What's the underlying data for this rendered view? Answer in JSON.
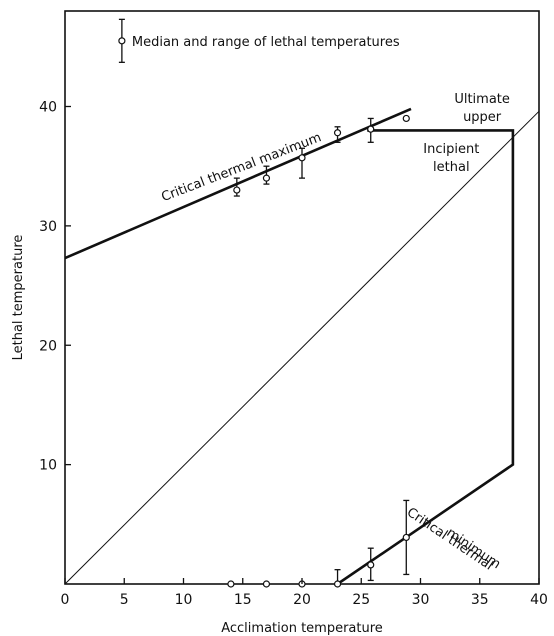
{
  "chart_data": {
    "type": "line",
    "xlabel": "Acclimation temperature",
    "ylabel": "Lethal temperature",
    "xlim": [
      0,
      40
    ],
    "ylim": [
      0,
      48
    ],
    "x_ticks": [
      0,
      5,
      10,
      15,
      20,
      25,
      30,
      35,
      40
    ],
    "y_ticks": [
      10,
      20,
      30,
      40
    ],
    "grid": false,
    "legend": {
      "position": "top-left",
      "label": "Median and range of lethal temperatures"
    },
    "series": [
      {
        "name": "Critical thermal maximum",
        "points": [
          [
            0,
            27.3
          ],
          [
            29.2,
            39.8
          ]
        ]
      },
      {
        "name": "",
        "points": [
          [
            0,
            0
          ],
          [
            40,
            39.6
          ]
        ]
      },
      {
        "name": "",
        "points": [
          [
            25.5,
            38
          ],
          [
            37.8,
            38
          ],
          [
            37.8,
            10
          ],
          [
            23,
            0
          ]
        ]
      }
    ],
    "observations": [
      {
        "x": 14.5,
        "y": 33,
        "low": 32.5,
        "high": 34
      },
      {
        "x": 17,
        "y": 34,
        "low": 33.5,
        "high": 35
      },
      {
        "x": 20,
        "y": 35.7,
        "low": 34,
        "high": 36.5
      },
      {
        "x": 23,
        "y": 37.8,
        "low": 37,
        "high": 38.3
      },
      {
        "x": 25.8,
        "y": 38.1,
        "low": 37,
        "high": 39
      },
      {
        "x": 28.8,
        "y": 39,
        "low": null,
        "high": null
      },
      {
        "x": 14,
        "y": 0,
        "low": null,
        "high": null
      },
      {
        "x": 17,
        "y": 0,
        "low": null,
        "high": null
      },
      {
        "x": 20,
        "y": 0,
        "low": null,
        "high": null
      },
      {
        "x": 23,
        "y": 0,
        "low": 0,
        "high": 1.2
      },
      {
        "x": 25.8,
        "y": 1.6,
        "low": 0.3,
        "high": 3
      },
      {
        "x": 28.8,
        "y": 3.9,
        "low": 0.8,
        "high": 7
      }
    ],
    "legend_marker": {
      "x": 4.8,
      "y": 45.5,
      "low": 43.7,
      "high": 47.3
    },
    "annotations": [
      {
        "text": "Critical thermal maximum",
        "x": 15,
        "y": 34.6,
        "angle": 21
      },
      {
        "text": "Ultimate",
        "x": 35.2,
        "y": 40.3,
        "angle": 0
      },
      {
        "text": "upper",
        "x": 35.2,
        "y": 38.8,
        "angle": 0
      },
      {
        "text": "Incipient",
        "x": 32.6,
        "y": 36.1,
        "angle": 0
      },
      {
        "text": "lethal",
        "x": 32.6,
        "y": 34.6,
        "angle": 0
      },
      {
        "text": "Critical thermal",
        "x": 32.3,
        "y": 3.5,
        "angle": -34
      },
      {
        "text": "minimum",
        "x": 34.3,
        "y": 2.7,
        "angle": -34
      }
    ]
  }
}
